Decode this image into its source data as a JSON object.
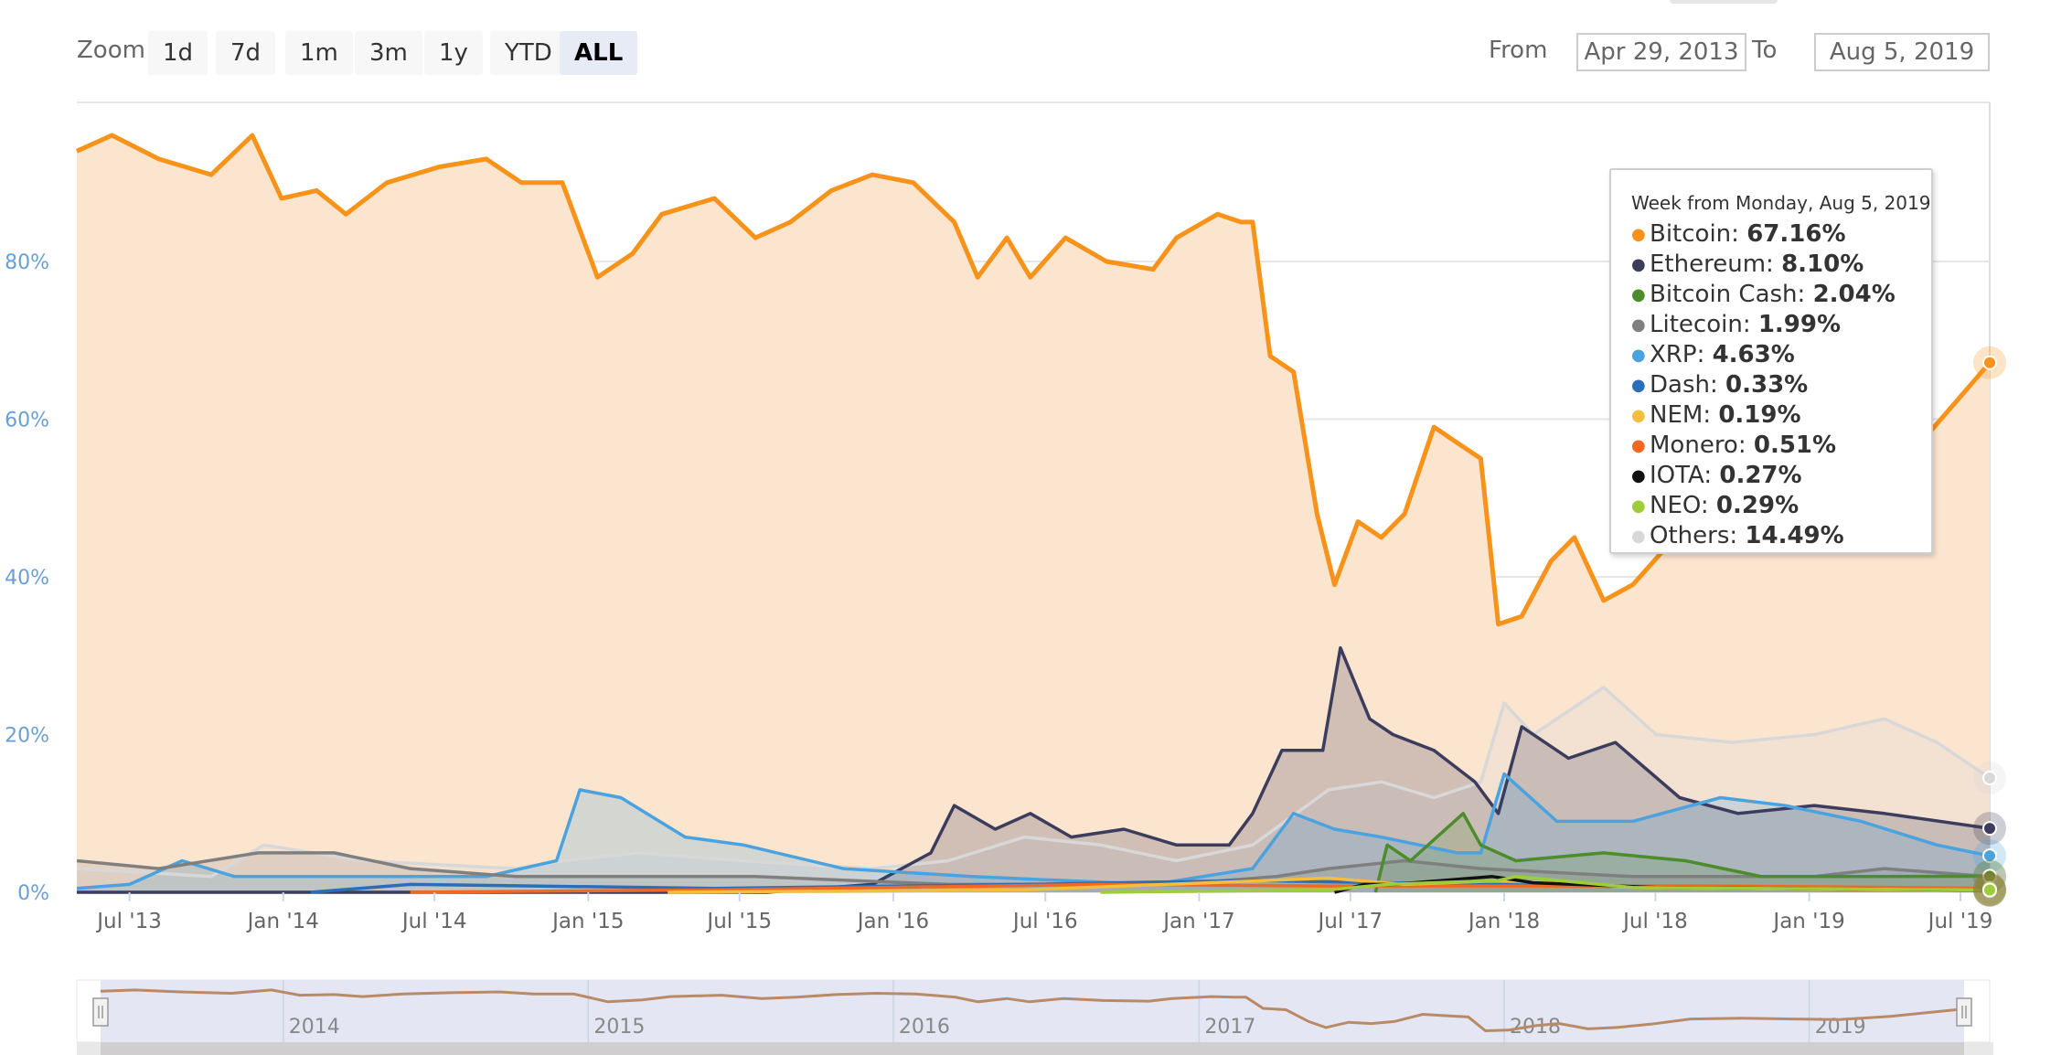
{
  "toolbar": {
    "zoom_label": "Zoom",
    "zoom_buttons": [
      {
        "label": "1d",
        "active": false
      },
      {
        "label": "7d",
        "active": false
      },
      {
        "label": "1m",
        "active": false
      },
      {
        "label": "3m",
        "active": false
      },
      {
        "label": "1y",
        "active": false
      },
      {
        "label": "YTD",
        "active": false
      },
      {
        "label": "ALL",
        "active": true
      }
    ],
    "from_label": "From",
    "from_value": "Apr 29, 2013",
    "to_label": "To",
    "to_value": "Aug 5, 2019"
  },
  "tooltip": {
    "header": "Week from Monday, Aug 5, 2019",
    "rows": [
      {
        "name": "Bitcoin",
        "value": "67.16%",
        "color": "#f7931a"
      },
      {
        "name": "Ethereum",
        "value": "8.10%",
        "color": "#3c3c5d"
      },
      {
        "name": "Bitcoin Cash",
        "value": "2.04%",
        "color": "#4c8c2b"
      },
      {
        "name": "Litecoin",
        "value": "1.99%",
        "color": "#7f7f7f"
      },
      {
        "name": "XRP",
        "value": "4.63%",
        "color": "#4aa3df"
      },
      {
        "name": "Dash",
        "value": "0.33%",
        "color": "#2a6eb9"
      },
      {
        "name": "NEM",
        "value": "0.19%",
        "color": "#f4bd3b"
      },
      {
        "name": "Monero",
        "value": "0.51%",
        "color": "#f26822"
      },
      {
        "name": "IOTA",
        "value": "0.27%",
        "color": "#111111"
      },
      {
        "name": "NEO",
        "value": "0.29%",
        "color": "#9fcc3b"
      },
      {
        "name": "Others",
        "value": "14.49%",
        "color": "#d8d8d8"
      }
    ]
  },
  "chart_data": {
    "type": "area",
    "x_unit": "date",
    "xlim": [
      "2013-04-29",
      "2019-08-05"
    ],
    "ylim": [
      0,
      100
    ],
    "y_ticks": [
      {
        "value": 0,
        "label": "0%"
      },
      {
        "value": 20,
        "label": "20%"
      },
      {
        "value": 40,
        "label": "40%"
      },
      {
        "value": 60,
        "label": "60%"
      },
      {
        "value": 80,
        "label": "80%"
      }
    ],
    "x_ticks": [
      {
        "date": "2013-07-01",
        "label": "Jul '13"
      },
      {
        "date": "2014-01-01",
        "label": "Jan '14"
      },
      {
        "date": "2014-07-01",
        "label": "Jul '14"
      },
      {
        "date": "2015-01-01",
        "label": "Jan '15"
      },
      {
        "date": "2015-07-01",
        "label": "Jul '15"
      },
      {
        "date": "2016-01-01",
        "label": "Jan '16"
      },
      {
        "date": "2016-07-01",
        "label": "Jul '16"
      },
      {
        "date": "2017-01-01",
        "label": "Jan '17"
      },
      {
        "date": "2017-07-01",
        "label": "Jul '17"
      },
      {
        "date": "2018-01-01",
        "label": "Jan '18"
      },
      {
        "date": "2018-07-01",
        "label": "Jul '18"
      },
      {
        "date": "2019-01-01",
        "label": "Jan '19"
      },
      {
        "date": "2019-07-01",
        "label": "Jul '19"
      }
    ],
    "navigator_ticks": [
      {
        "date": "2014-01-01",
        "label": "2014"
      },
      {
        "date": "2015-01-01",
        "label": "2015"
      },
      {
        "date": "2016-01-01",
        "label": "2016"
      },
      {
        "date": "2017-01-01",
        "label": "2017"
      },
      {
        "date": "2018-01-01",
        "label": "2018"
      },
      {
        "date": "2019-01-01",
        "label": "2019"
      }
    ],
    "grid": true,
    "series": [
      {
        "name": "Bitcoin",
        "color": "#f7931a",
        "fill": "#fce5cf",
        "points": [
          [
            "2013-04-29",
            94
          ],
          [
            "2013-06-10",
            96
          ],
          [
            "2013-08-05",
            93
          ],
          [
            "2013-10-07",
            91
          ],
          [
            "2013-11-25",
            96
          ],
          [
            "2013-12-30",
            88
          ],
          [
            "2014-02-10",
            89
          ],
          [
            "2014-03-17",
            86
          ],
          [
            "2014-05-05",
            90
          ],
          [
            "2014-07-07",
            92
          ],
          [
            "2014-09-01",
            93
          ],
          [
            "2014-10-13",
            90
          ],
          [
            "2014-12-01",
            90
          ],
          [
            "2015-01-12",
            78
          ],
          [
            "2015-02-23",
            81
          ],
          [
            "2015-03-30",
            86
          ],
          [
            "2015-06-01",
            88
          ],
          [
            "2015-07-20",
            83
          ],
          [
            "2015-08-31",
            85
          ],
          [
            "2015-10-19",
            89
          ],
          [
            "2015-12-07",
            91
          ],
          [
            "2016-01-25",
            90
          ],
          [
            "2016-03-14",
            85
          ],
          [
            "2016-04-11",
            78
          ],
          [
            "2016-05-16",
            83
          ],
          [
            "2016-06-13",
            78
          ],
          [
            "2016-07-25",
            83
          ],
          [
            "2016-09-12",
            80
          ],
          [
            "2016-11-07",
            79
          ],
          [
            "2016-12-05",
            83
          ],
          [
            "2017-01-23",
            86
          ],
          [
            "2017-02-20",
            85
          ],
          [
            "2017-03-06",
            85
          ],
          [
            "2017-03-27",
            68
          ],
          [
            "2017-04-24",
            66
          ],
          [
            "2017-05-22",
            48
          ],
          [
            "2017-06-12",
            39
          ],
          [
            "2017-07-10",
            47
          ],
          [
            "2017-08-07",
            45
          ],
          [
            "2017-09-04",
            48
          ],
          [
            "2017-10-09",
            59
          ],
          [
            "2017-11-06",
            57
          ],
          [
            "2017-12-04",
            55
          ],
          [
            "2017-12-25",
            34
          ],
          [
            "2018-01-22",
            35
          ],
          [
            "2018-02-26",
            42
          ],
          [
            "2018-03-26",
            45
          ],
          [
            "2018-04-30",
            37
          ],
          [
            "2018-06-04",
            39
          ],
          [
            "2018-07-16",
            44
          ],
          [
            "2018-09-03",
            52
          ],
          [
            "2018-11-05",
            53
          ],
          [
            "2019-01-07",
            52
          ],
          [
            "2019-03-04",
            51
          ],
          [
            "2019-05-06",
            56
          ],
          [
            "2019-06-24",
            62
          ],
          [
            "2019-08-05",
            67.16
          ]
        ]
      },
      {
        "name": "Others",
        "color": "#d8d8d8",
        "fill": "rgba(216,216,216,0.25)",
        "points": [
          [
            "2013-04-29",
            3
          ],
          [
            "2013-10-07",
            2
          ],
          [
            "2013-12-09",
            6
          ],
          [
            "2014-04-07",
            4
          ],
          [
            "2014-10-06",
            3
          ],
          [
            "2014-12-01",
            4
          ],
          [
            "2015-03-02",
            5
          ],
          [
            "2015-07-06",
            4
          ],
          [
            "2015-12-07",
            3
          ],
          [
            "2016-03-07",
            4
          ],
          [
            "2016-06-06",
            7
          ],
          [
            "2016-09-05",
            6
          ],
          [
            "2016-12-05",
            4
          ],
          [
            "2017-03-06",
            6
          ],
          [
            "2017-06-05",
            13
          ],
          [
            "2017-08-07",
            14
          ],
          [
            "2017-10-09",
            12
          ],
          [
            "2017-12-04",
            14
          ],
          [
            "2018-01-01",
            24
          ],
          [
            "2018-02-05",
            20
          ],
          [
            "2018-03-05",
            22
          ],
          [
            "2018-04-30",
            26
          ],
          [
            "2018-07-02",
            20
          ],
          [
            "2018-10-01",
            19
          ],
          [
            "2019-01-07",
            20
          ],
          [
            "2019-04-01",
            22
          ],
          [
            "2019-06-03",
            19
          ],
          [
            "2019-08-05",
            14.49
          ]
        ]
      },
      {
        "name": "Ethereum",
        "color": "#3c3c5d",
        "fill": "rgba(60,60,93,0.22)",
        "points": [
          [
            "2013-04-29",
            0
          ],
          [
            "2015-08-03",
            0
          ],
          [
            "2015-12-07",
            1
          ],
          [
            "2016-02-15",
            5
          ],
          [
            "2016-03-14",
            11
          ],
          [
            "2016-05-02",
            8
          ],
          [
            "2016-06-13",
            10
          ],
          [
            "2016-08-01",
            7
          ],
          [
            "2016-10-03",
            8
          ],
          [
            "2016-12-05",
            6
          ],
          [
            "2017-02-06",
            6
          ],
          [
            "2017-03-06",
            10
          ],
          [
            "2017-04-10",
            18
          ],
          [
            "2017-05-29",
            18
          ],
          [
            "2017-06-19",
            31
          ],
          [
            "2017-07-24",
            22
          ],
          [
            "2017-08-21",
            20
          ],
          [
            "2017-10-09",
            18
          ],
          [
            "2017-11-27",
            14
          ],
          [
            "2017-12-25",
            10
          ],
          [
            "2018-01-22",
            21
          ],
          [
            "2018-03-19",
            17
          ],
          [
            "2018-05-14",
            19
          ],
          [
            "2018-07-30",
            12
          ],
          [
            "2018-10-08",
            10
          ],
          [
            "2019-01-07",
            11
          ],
          [
            "2019-04-01",
            10
          ],
          [
            "2019-08-05",
            8.1
          ]
        ]
      },
      {
        "name": "XRP",
        "color": "#4aa3df",
        "fill": "rgba(74,163,223,0.22)",
        "points": [
          [
            "2013-04-29",
            0.5
          ],
          [
            "2013-07-01",
            1
          ],
          [
            "2013-09-02",
            4
          ],
          [
            "2013-11-04",
            2
          ],
          [
            "2014-03-03",
            2
          ],
          [
            "2014-09-01",
            2
          ],
          [
            "2014-11-24",
            4
          ],
          [
            "2014-12-22",
            13
          ],
          [
            "2015-02-09",
            12
          ],
          [
            "2015-04-27",
            7
          ],
          [
            "2015-07-06",
            6
          ],
          [
            "2015-11-02",
            3
          ],
          [
            "2016-04-04",
            2
          ],
          [
            "2016-11-07",
            1
          ],
          [
            "2017-03-06",
            3
          ],
          [
            "2017-04-24",
            10
          ],
          [
            "2017-06-12",
            8
          ],
          [
            "2017-08-07",
            7
          ],
          [
            "2017-11-06",
            5
          ],
          [
            "2017-12-04",
            5
          ],
          [
            "2018-01-01",
            15
          ],
          [
            "2018-03-05",
            9
          ],
          [
            "2018-06-04",
            9
          ],
          [
            "2018-09-17",
            12
          ],
          [
            "2018-12-03",
            11
          ],
          [
            "2019-03-04",
            9
          ],
          [
            "2019-06-03",
            6
          ],
          [
            "2019-08-05",
            4.63
          ]
        ]
      },
      {
        "name": "Litecoin",
        "color": "#7f7f7f",
        "fill": "rgba(127,127,127,0.18)",
        "points": [
          [
            "2013-04-29",
            4
          ],
          [
            "2013-08-05",
            3
          ],
          [
            "2013-12-02",
            5
          ],
          [
            "2014-03-03",
            5
          ],
          [
            "2014-06-02",
            3
          ],
          [
            "2014-10-06",
            2
          ],
          [
            "2015-03-02",
            2
          ],
          [
            "2015-07-20",
            2
          ],
          [
            "2016-03-07",
            1
          ],
          [
            "2016-12-05",
            1
          ],
          [
            "2017-04-03",
            2
          ],
          [
            "2017-06-05",
            3
          ],
          [
            "2017-09-04",
            4
          ],
          [
            "2017-12-04",
            3
          ],
          [
            "2018-06-04",
            2
          ],
          [
            "2019-01-07",
            2
          ],
          [
            "2019-04-01",
            3
          ],
          [
            "2019-08-05",
            1.99
          ]
        ]
      },
      {
        "name": "Bitcoin Cash",
        "color": "#4c8c2b",
        "fill": "rgba(76,140,43,0.18)",
        "points": [
          [
            "2017-07-31",
            0
          ],
          [
            "2017-08-14",
            6
          ],
          [
            "2017-09-11",
            4
          ],
          [
            "2017-11-13",
            10
          ],
          [
            "2017-12-04",
            6
          ],
          [
            "2018-01-15",
            4
          ],
          [
            "2018-04-30",
            5
          ],
          [
            "2018-08-06",
            4
          ],
          [
            "2018-11-05",
            2
          ],
          [
            "2019-03-04",
            2
          ],
          [
            "2019-08-05",
            2.04
          ]
        ]
      },
      {
        "name": "Dash",
        "color": "#2a6eb9",
        "fill": "none",
        "points": [
          [
            "2014-02-03",
            0
          ],
          [
            "2014-06-02",
            1
          ],
          [
            "2015-06-01",
            0.5
          ],
          [
            "2016-06-06",
            1
          ],
          [
            "2017-03-06",
            1.5
          ],
          [
            "2017-12-04",
            1
          ],
          [
            "2018-06-04",
            0.7
          ],
          [
            "2019-08-05",
            0.33
          ]
        ]
      },
      {
        "name": "Monero",
        "color": "#f26822",
        "fill": "none",
        "points": [
          [
            "2014-06-02",
            0
          ],
          [
            "2015-06-01",
            0.3
          ],
          [
            "2016-09-05",
            1
          ],
          [
            "2017-06-05",
            0.8
          ],
          [
            "2018-01-01",
            0.8
          ],
          [
            "2018-09-03",
            0.8
          ],
          [
            "2019-08-05",
            0.51
          ]
        ]
      },
      {
        "name": "NEM",
        "color": "#f4bd3b",
        "fill": "none",
        "points": [
          [
            "2015-04-06",
            0
          ],
          [
            "2016-06-06",
            0.3
          ],
          [
            "2017-06-05",
            1.8
          ],
          [
            "2017-09-04",
            1
          ],
          [
            "2018-01-01",
            1.5
          ],
          [
            "2018-06-04",
            0.6
          ],
          [
            "2019-08-05",
            0.19
          ]
        ]
      },
      {
        "name": "IOTA",
        "color": "#111111",
        "fill": "none",
        "points": [
          [
            "2017-06-12",
            0
          ],
          [
            "2017-07-17",
            1
          ],
          [
            "2017-08-21",
            1
          ],
          [
            "2017-12-18",
            2
          ],
          [
            "2018-02-05",
            1.2
          ],
          [
            "2018-07-02",
            0.6
          ],
          [
            "2019-08-05",
            0.27
          ]
        ]
      },
      {
        "name": "NEO",
        "color": "#9fcc3b",
        "fill": "none",
        "points": [
          [
            "2016-09-05",
            0
          ],
          [
            "2017-06-05",
            0.3
          ],
          [
            "2017-08-14",
            1
          ],
          [
            "2017-12-25",
            1.5
          ],
          [
            "2018-01-15",
            2
          ],
          [
            "2018-06-04",
            0.6
          ],
          [
            "2019-08-05",
            0.29
          ]
        ]
      }
    ]
  }
}
